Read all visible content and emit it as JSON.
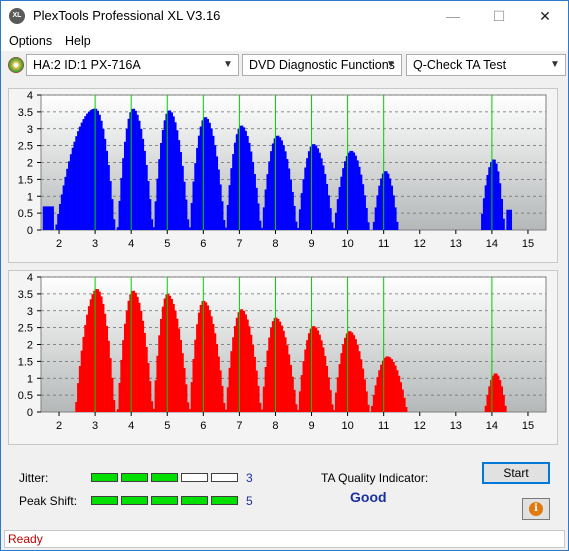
{
  "app": {
    "title": "PlexTools Professional XL V3.16",
    "icon_text": "XL"
  },
  "window_controls": {
    "minimize": "—",
    "maximize": "☐",
    "close": "✕"
  },
  "menu": [
    {
      "label": "Options"
    },
    {
      "label": "Help"
    }
  ],
  "toolbar": {
    "drive": "HA:2 ID:1  PX-716A",
    "function": "DVD Diagnostic Functions",
    "test": "Q-Check TA Test"
  },
  "chart_data": [
    {
      "type": "bar",
      "name": "jitter-top",
      "color": "#0000ff",
      "xlim": [
        1.5,
        15.5
      ],
      "ylim": [
        0,
        4
      ],
      "xticks": [
        2,
        3,
        4,
        5,
        6,
        7,
        8,
        9,
        10,
        11,
        12,
        13,
        14,
        15
      ],
      "yticks": [
        "4",
        "3.5",
        "3",
        "2.5",
        "2",
        "1.5",
        "1",
        "0.5",
        "0"
      ],
      "peak_lines": [
        3,
        4,
        5,
        6,
        7,
        8,
        9,
        10,
        11,
        14
      ],
      "humps": [
        {
          "from": 1.55,
          "to": 1.85,
          "peak": 0.7
        },
        {
          "from": 1.9,
          "to": 3.55,
          "center": 3.0,
          "peak": 3.6
        },
        {
          "from": 3.62,
          "to": 4.6,
          "center": 4.05,
          "peak": 3.6
        },
        {
          "from": 4.62,
          "to": 5.6,
          "center": 5.05,
          "peak": 3.55
        },
        {
          "from": 5.62,
          "to": 6.6,
          "center": 6.05,
          "peak": 3.35
        },
        {
          "from": 6.62,
          "to": 7.6,
          "center": 7.05,
          "peak": 3.1
        },
        {
          "from": 7.62,
          "to": 8.6,
          "center": 8.05,
          "peak": 2.8
        },
        {
          "from": 8.62,
          "to": 9.6,
          "center": 9.05,
          "peak": 2.55
        },
        {
          "from": 9.62,
          "to": 10.6,
          "center": 10.1,
          "peak": 2.35
        },
        {
          "from": 10.7,
          "to": 11.4,
          "center": 11.05,
          "peak": 1.75
        },
        {
          "from": 13.68,
          "to": 14.35,
          "center": 14.05,
          "peak": 2.1
        },
        {
          "from": 14.4,
          "to": 14.55,
          "peak": 0.6
        }
      ]
    },
    {
      "type": "bar",
      "name": "peak-shift-bottom",
      "color": "#ff0000",
      "xlim": [
        1.5,
        15.5
      ],
      "ylim": [
        0,
        4
      ],
      "xticks": [
        2,
        3,
        4,
        5,
        6,
        7,
        8,
        9,
        10,
        11,
        12,
        13,
        14,
        15
      ],
      "yticks": [
        "4",
        "3.5",
        "3",
        "2.5",
        "2",
        "1.5",
        "1",
        "0.5",
        "0"
      ],
      "peak_lines": [
        3,
        4,
        5,
        6,
        7,
        8,
        9,
        10,
        11,
        14
      ],
      "humps": [
        {
          "from": 2.45,
          "to": 3.55,
          "center": 3.05,
          "peak": 3.65
        },
        {
          "from": 3.62,
          "to": 4.6,
          "center": 4.05,
          "peak": 3.6
        },
        {
          "from": 4.62,
          "to": 5.6,
          "center": 5.0,
          "peak": 3.5
        },
        {
          "from": 5.62,
          "to": 6.6,
          "center": 6.0,
          "peak": 3.3
        },
        {
          "from": 6.62,
          "to": 7.6,
          "center": 7.05,
          "peak": 3.05
        },
        {
          "from": 7.62,
          "to": 8.6,
          "center": 8.0,
          "peak": 2.8
        },
        {
          "from": 8.62,
          "to": 9.6,
          "center": 9.05,
          "peak": 2.55
        },
        {
          "from": 9.62,
          "to": 10.6,
          "center": 10.05,
          "peak": 2.4
        },
        {
          "from": 10.65,
          "to": 11.65,
          "center": 11.1,
          "peak": 1.65
        },
        {
          "from": 13.8,
          "to": 14.4,
          "center": 14.1,
          "peak": 1.15
        }
      ]
    }
  ],
  "metrics": {
    "jitter_label": "Jitter:",
    "jitter_value": "3",
    "jitter_level": 3,
    "peak_shift_label": "Peak Shift:",
    "peak_shift_value": "5",
    "peak_shift_level": 5,
    "segments_total": 5,
    "ta_label": "TA Quality Indicator:",
    "ta_value": "Good"
  },
  "buttons": {
    "start": "Start",
    "info_icon": "info-icon"
  },
  "status": {
    "text": "Ready"
  }
}
